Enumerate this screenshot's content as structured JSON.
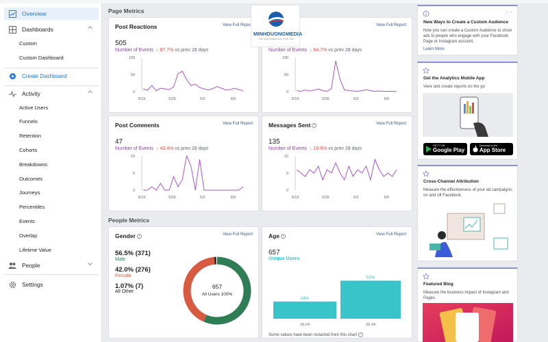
{
  "sidebar": {
    "overview": "Overview",
    "dashboards": "Dashboards",
    "custom": "Custom",
    "custom_dashboard": "Custom Dashboard",
    "create_dashboard": "Create Dashboard",
    "activity": "Activity",
    "activity_items": [
      "Active Users",
      "Funnels",
      "Retention",
      "Cohorts",
      "Breakdowns",
      "Outcomes",
      "Journeys",
      "Percentiles",
      "Events",
      "Overlap",
      "Lifetime Value"
    ],
    "people": "People",
    "settings": "Settings"
  },
  "page_metrics": {
    "section_title": "Page Metrics",
    "view_full_report": "View Full Report",
    "events_label": "Number of Events",
    "vs_label": "vs prev 28 days",
    "x_ticks": [
      "5/19",
      "5/26",
      "6/2",
      "6/9"
    ],
    "cards": [
      {
        "title": "Post Reactions",
        "value": "505",
        "change": "↓ 87.7%",
        "y_ticks": [
          "100",
          "50",
          "0"
        ],
        "ymax": 100,
        "values": [
          8,
          4,
          18,
          3,
          10,
          8,
          6,
          14,
          52,
          60,
          35,
          18,
          22,
          12,
          8,
          5,
          9,
          15,
          10,
          5,
          6,
          10,
          6,
          3
        ]
      },
      {
        "title": "",
        "value": "",
        "change": "↓ 64.7%",
        "y_ticks": [
          "100",
          "50",
          "0"
        ],
        "ymax": 100,
        "values": [
          3,
          1,
          5,
          2,
          4,
          8,
          3,
          1,
          9,
          90,
          35,
          5,
          3,
          2,
          1,
          3,
          6,
          3,
          1,
          2,
          1,
          1,
          1,
          0
        ]
      },
      {
        "title": "Post Comments",
        "value": "47",
        "change": "↓ 43.4%",
        "y_ticks": [
          "10",
          "5",
          "0"
        ],
        "ymax": 10,
        "values": [
          0,
          0,
          1,
          0,
          2,
          0,
          0,
          4,
          1,
          3,
          10,
          7,
          0,
          9,
          0,
          0,
          0,
          0,
          0,
          0,
          0,
          0,
          0,
          1
        ]
      },
      {
        "title": "Messages Sent",
        "value": "135",
        "change": "↓ 19.6%",
        "y_ticks": [
          "10",
          "5",
          "0"
        ],
        "ymax": 10,
        "values": [
          6,
          5,
          4,
          6,
          5,
          7,
          3,
          6,
          5,
          8,
          5,
          3,
          7,
          4,
          6,
          5,
          7,
          3,
          9,
          6,
          4,
          5,
          4,
          6
        ]
      }
    ]
  },
  "people_metrics": {
    "section_title": "People Metrics",
    "gender": {
      "title": "Gender",
      "items": [
        {
          "value": "56.5% (371)",
          "label": "Male",
          "color": "#2e7d55"
        },
        {
          "value": "42.0% (276)",
          "label": "Female",
          "color": "#d65b40"
        },
        {
          "value": "1.07% (7)",
          "label": "All Other",
          "color": "#2b2b2b"
        }
      ],
      "fractions": [
        0.565,
        0.42,
        0.0107
      ],
      "center_value": "657",
      "center_label": "All Users 100%"
    },
    "age": {
      "title": "Age",
      "value": "657",
      "label": "Unique Users",
      "bars": [
        {
          "category": "18-24",
          "value": 24,
          "label": "24%"
        },
        {
          "category": "25-34",
          "value": 53,
          "label": "53%"
        }
      ],
      "bar_color": "#38c4c9",
      "footnote": "Some values have been redacted from this chart"
    }
  },
  "right": {
    "card1": {
      "title": "New Ways to Create a Custom Audience",
      "text": "Now you can create a Custom Audience to show ads to people who engage with your Facebook Page or Instagram account.",
      "link": "Learn More"
    },
    "card2": {
      "title": "Get the Analytics Mobile App",
      "text": "View and create reports on the go",
      "google_small": "GET IT ON",
      "google": "Google Play",
      "apple_small": "Download on the",
      "apple": "App Store"
    },
    "card3": {
      "title": "Cross-Channel Attribution",
      "text": "Measure the effectiveness of your ad campaigns, on and off Facebook."
    },
    "card4": {
      "title": "Featured Blog",
      "text": "Measure the business impact of Instagram and Pages"
    }
  },
  "watermark": {
    "name": "MINHDUONGMEDIA",
    "tagline": "GIẢI PHÁP MARKETING TỔNG THỂ"
  },
  "colors": {
    "accent": "#1877f2",
    "line": "#a855c8",
    "negative": "#e14f43"
  }
}
